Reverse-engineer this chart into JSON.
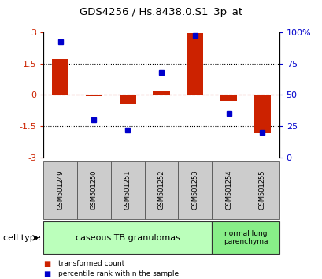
{
  "title": "GDS4256 / Hs.8438.0.S1_3p_at",
  "samples": [
    "GSM501249",
    "GSM501250",
    "GSM501251",
    "GSM501252",
    "GSM501253",
    "GSM501254",
    "GSM501255"
  ],
  "red_values": [
    1.7,
    -0.08,
    -0.45,
    0.15,
    2.95,
    -0.3,
    -1.85
  ],
  "blue_values": [
    92,
    30,
    22,
    68,
    97,
    35,
    20
  ],
  "group1_samples": 5,
  "group1_label": "caseous TB granulomas",
  "group2_label": "normal lung\nparenchyma",
  "cell_type_label": "cell type",
  "legend_red": "transformed count",
  "legend_blue": "percentile rank within the sample",
  "ylim_left": [
    -3,
    3
  ],
  "ylim_right": [
    0,
    100
  ],
  "yticks_left": [
    -3,
    -1.5,
    0,
    1.5,
    3
  ],
  "yticks_right": [
    0,
    25,
    50,
    75,
    100
  ],
  "ytick_labels_right": [
    "0",
    "25",
    "50",
    "75",
    "100%"
  ],
  "red_color": "#cc2200",
  "blue_color": "#0000cc",
  "group1_color": "#bbffbb",
  "group2_color": "#88ee88",
  "sample_box_color": "#cccccc",
  "bg_color": "#ffffff",
  "bar_width": 0.5,
  "marker_size": 5
}
